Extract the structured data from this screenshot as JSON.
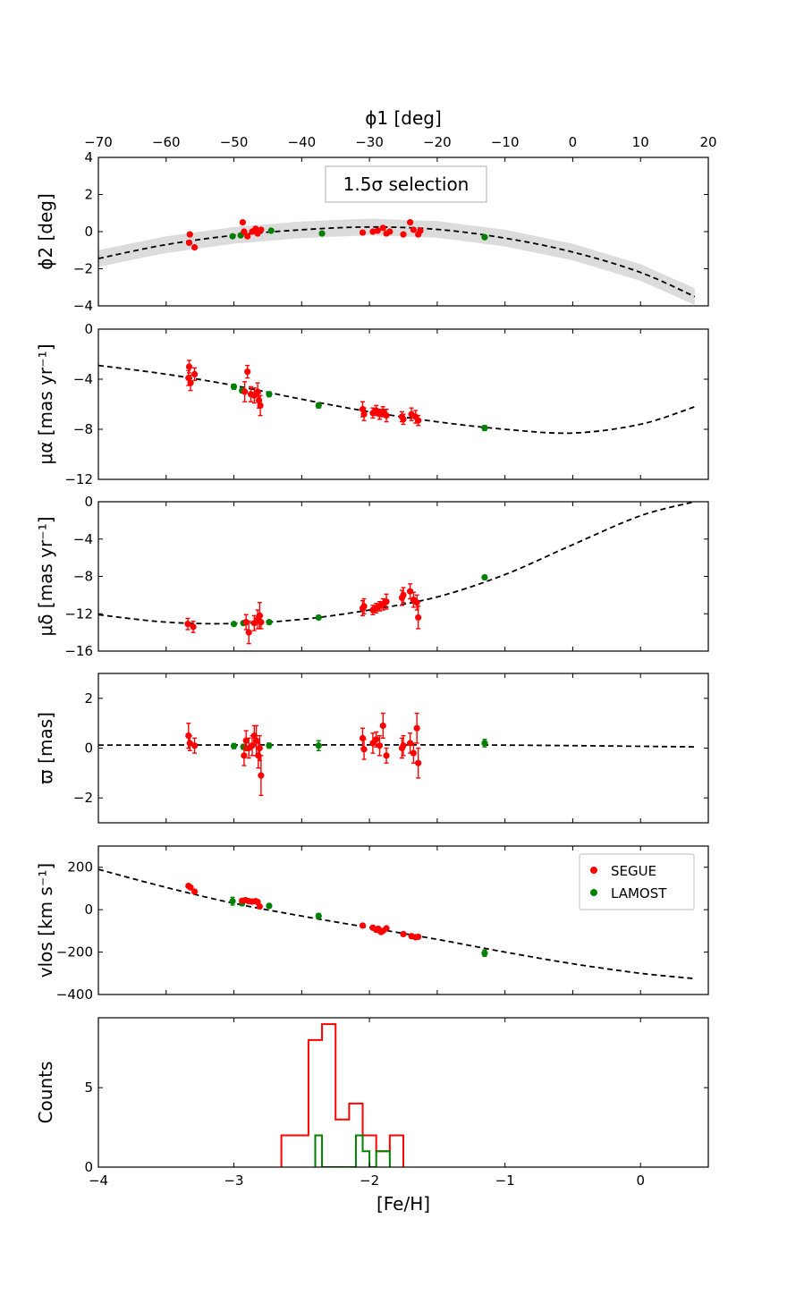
{
  "chart_data": [
    {
      "id": "phi2",
      "type": "scatter",
      "xlabel": "ϕ1 [deg]",
      "ylabel": "ϕ2 [deg]",
      "xlim": [
        -70,
        20
      ],
      "ylim": [
        -4,
        4
      ],
      "xticks": [
        -70,
        -60,
        -50,
        -40,
        -30,
        -20,
        -10,
        0,
        10,
        20
      ],
      "yticks": [
        -4,
        -2,
        0,
        2,
        4
      ],
      "annotation": "1.5σ selection",
      "model": [
        [
          -70,
          -1.45
        ],
        [
          -60,
          -0.7
        ],
        [
          -50,
          -0.2
        ],
        [
          -40,
          0.1
        ],
        [
          -30,
          0.25
        ],
        [
          -20,
          0.12
        ],
        [
          -10,
          -0.35
        ],
        [
          0,
          -1.1
        ],
        [
          10,
          -2.2
        ],
        [
          18,
          -3.5
        ]
      ],
      "band_halfwidth": 0.45,
      "series": [
        {
          "name": "SEGUE",
          "color": "#ff0000",
          "points": [
            [
              -56.5,
              -0.15
            ],
            [
              -56.6,
              -0.6
            ],
            [
              -55.8,
              -0.85
            ],
            [
              -48.7,
              0.5
            ],
            [
              -48.5,
              0.0
            ],
            [
              -48.0,
              -0.25
            ],
            [
              -47.3,
              0.0
            ],
            [
              -46.8,
              0.15
            ],
            [
              -46.5,
              -0.1
            ],
            [
              -46.0,
              0.1
            ],
            [
              -31.0,
              -0.05
            ],
            [
              -29.5,
              0.0
            ],
            [
              -28.8,
              0.05
            ],
            [
              -28.0,
              0.2
            ],
            [
              -27.5,
              -0.1
            ],
            [
              -27.0,
              0.0
            ],
            [
              -25.0,
              -0.15
            ],
            [
              -24.0,
              0.5
            ],
            [
              -23.5,
              0.1
            ],
            [
              -22.8,
              -0.15
            ],
            [
              -22.5,
              0.05
            ]
          ]
        },
        {
          "name": "LAMOST",
          "color": "#008000",
          "points": [
            [
              -50.2,
              -0.25
            ],
            [
              -49.0,
              -0.2
            ],
            [
              -44.5,
              0.05
            ],
            [
              -37.0,
              -0.1
            ],
            [
              -13.0,
              -0.3
            ]
          ]
        }
      ]
    },
    {
      "id": "pmra",
      "type": "scatter",
      "xlabel": "",
      "ylabel": "μα [mas yr⁻¹]",
      "xlim": [
        -70,
        20
      ],
      "ylim": [
        -12,
        0
      ],
      "yticks": [
        -12,
        -8,
        -4,
        0
      ],
      "model": [
        [
          -70,
          -2.9
        ],
        [
          -60,
          -3.6
        ],
        [
          -50,
          -4.5
        ],
        [
          -40,
          -5.6
        ],
        [
          -30,
          -6.6
        ],
        [
          -20,
          -7.4
        ],
        [
          -10,
          -8.0
        ],
        [
          0,
          -8.3
        ],
        [
          10,
          -7.6
        ],
        [
          18,
          -6.2
        ]
      ],
      "series": [
        {
          "name": "SEGUE",
          "color": "#ff0000",
          "points": [
            [
              -56.6,
              -3.0,
              0.5
            ],
            [
              -56.7,
              -3.9,
              0.6
            ],
            [
              -56.4,
              -4.3,
              0.6
            ],
            [
              -55.8,
              -3.6,
              0.5
            ],
            [
              -48.4,
              -5.0,
              0.8
            ],
            [
              -48.0,
              -3.4,
              0.5
            ],
            [
              -47.5,
              -5.2,
              0.6
            ],
            [
              -47.0,
              -5.3,
              0.6
            ],
            [
              -46.5,
              -5.0,
              0.7
            ],
            [
              -46.3,
              -5.7,
              0.6
            ],
            [
              -46.1,
              -6.1,
              0.8
            ],
            [
              -31.0,
              -6.4,
              0.6
            ],
            [
              -30.8,
              -6.8,
              0.5
            ],
            [
              -29.5,
              -6.7,
              0.4
            ],
            [
              -29.0,
              -6.5,
              0.4
            ],
            [
              -28.5,
              -6.8,
              0.4
            ],
            [
              -28.0,
              -6.6,
              0.4
            ],
            [
              -27.5,
              -6.9,
              0.5
            ],
            [
              -25.2,
              -7.0,
              0.4
            ],
            [
              -25.0,
              -7.2,
              0.4
            ],
            [
              -23.8,
              -6.8,
              0.5
            ],
            [
              -23.2,
              -7.0,
              0.5
            ],
            [
              -22.8,
              -7.3,
              0.4
            ]
          ]
        },
        {
          "name": "LAMOST",
          "color": "#008000",
          "points": [
            [
              -50.0,
              -4.6,
              0.2
            ],
            [
              -48.8,
              -4.9,
              0.2
            ],
            [
              -44.8,
              -5.2,
              0.2
            ],
            [
              -37.5,
              -6.1,
              0.2
            ],
            [
              -13.0,
              -7.9,
              0.2
            ]
          ]
        }
      ]
    },
    {
      "id": "pmdec",
      "type": "scatter",
      "xlabel": "",
      "ylabel": "μδ [mas yr⁻¹]",
      "xlim": [
        -70,
        20
      ],
      "ylim": [
        -16,
        0
      ],
      "yticks": [
        -16,
        -12,
        -8,
        -4,
        0
      ],
      "model": [
        [
          -70,
          -12.1
        ],
        [
          -60,
          -12.9
        ],
        [
          -50,
          -13.05
        ],
        [
          -40,
          -12.6
        ],
        [
          -30,
          -11.6
        ],
        [
          -20,
          -10.2
        ],
        [
          -10,
          -7.8
        ],
        [
          0,
          -4.6
        ],
        [
          10,
          -1.5
        ],
        [
          18,
          0.0
        ]
      ],
      "series": [
        {
          "name": "SEGUE",
          "color": "#ff0000",
          "points": [
            [
              -56.8,
              -13.1,
              0.6
            ],
            [
              -56.0,
              -13.4,
              0.6
            ],
            [
              -48.2,
              -12.9,
              0.8
            ],
            [
              -47.8,
              -14.0,
              1.2
            ],
            [
              -47.0,
              -13.0,
              0.8
            ],
            [
              -46.5,
              -12.6,
              1.0
            ],
            [
              -46.2,
              -12.2,
              1.4
            ],
            [
              -46.0,
              -12.9,
              0.7
            ],
            [
              -31.0,
              -11.4,
              0.8
            ],
            [
              -30.8,
              -11.2,
              0.8
            ],
            [
              -29.5,
              -11.6,
              0.5
            ],
            [
              -29.0,
              -11.4,
              0.5
            ],
            [
              -28.5,
              -11.2,
              0.5
            ],
            [
              -28.0,
              -11.0,
              0.6
            ],
            [
              -27.5,
              -10.7,
              0.8
            ],
            [
              -25.2,
              -10.3,
              0.8
            ],
            [
              -25.0,
              -10.0,
              0.8
            ],
            [
              -24.0,
              -9.6,
              0.8
            ],
            [
              -23.5,
              -10.5,
              0.8
            ],
            [
              -23.0,
              -10.8,
              0.8
            ],
            [
              -22.8,
              -12.4,
              1.2
            ]
          ]
        },
        {
          "name": "LAMOST",
          "color": "#008000",
          "points": [
            [
              -50.0,
              -13.1,
              0.2
            ],
            [
              -48.6,
              -13.0,
              0.2
            ],
            [
              -44.8,
              -12.9,
              0.2
            ],
            [
              -37.5,
              -12.4,
              0.2
            ],
            [
              -13.0,
              -8.1,
              0.2
            ]
          ]
        }
      ]
    },
    {
      "id": "parallax",
      "type": "scatter",
      "xlabel": "",
      "ylabel": "ϖ [mas]",
      "xlim": [
        -70,
        20
      ],
      "ylim": [
        -3,
        3
      ],
      "yticks": [
        -2,
        0,
        2
      ],
      "model": [
        [
          -70,
          0.12
        ],
        [
          -40,
          0.13
        ],
        [
          -10,
          0.12
        ],
        [
          18,
          0.05
        ]
      ],
      "series": [
        {
          "name": "SEGUE",
          "color": "#ff0000",
          "points": [
            [
              -56.7,
              0.5,
              0.5
            ],
            [
              -56.5,
              0.2,
              0.3
            ],
            [
              -55.8,
              0.1,
              0.3
            ],
            [
              -48.5,
              -0.3,
              0.4
            ],
            [
              -48.2,
              0.3,
              0.4
            ],
            [
              -47.8,
              0.0,
              0.4
            ],
            [
              -47.3,
              0.1,
              0.4
            ],
            [
              -47.0,
              0.5,
              0.4
            ],
            [
              -46.7,
              0.3,
              0.6
            ],
            [
              -46.4,
              -0.3,
              0.5
            ],
            [
              -46.2,
              0.0,
              0.5
            ],
            [
              -46.0,
              -1.1,
              0.8
            ],
            [
              -31.0,
              0.4,
              0.4
            ],
            [
              -30.8,
              -0.05,
              0.4
            ],
            [
              -29.5,
              0.2,
              0.4
            ],
            [
              -29.0,
              0.35,
              0.3
            ],
            [
              -28.5,
              0.1,
              0.4
            ],
            [
              -28.0,
              0.9,
              0.5
            ],
            [
              -27.5,
              -0.3,
              0.3
            ],
            [
              -25.2,
              0.0,
              0.4
            ],
            [
              -25.0,
              0.1,
              0.4
            ],
            [
              -24.0,
              0.2,
              0.4
            ],
            [
              -23.5,
              -0.2,
              0.4
            ],
            [
              -23.0,
              0.8,
              0.6
            ],
            [
              -22.8,
              -0.6,
              0.6
            ]
          ]
        },
        {
          "name": "LAMOST",
          "color": "#008000",
          "points": [
            [
              -50.0,
              0.08,
              0.1
            ],
            [
              -48.6,
              0.05,
              0.1
            ],
            [
              -44.8,
              0.1,
              0.1
            ],
            [
              -37.5,
              0.1,
              0.2
            ],
            [
              -13.0,
              0.2,
              0.15
            ]
          ]
        }
      ]
    },
    {
      "id": "vlos",
      "type": "scatter",
      "xlabel": "",
      "ylabel": "vlos [km s⁻¹]",
      "xlim": [
        -70,
        20
      ],
      "ylim": [
        -400,
        300
      ],
      "yticks": [
        -400,
        -200,
        0,
        200
      ],
      "model": [
        [
          -70,
          190
        ],
        [
          -60,
          105
        ],
        [
          -50,
          30
        ],
        [
          -40,
          -30
        ],
        [
          -30,
          -85
        ],
        [
          -20,
          -140
        ],
        [
          -10,
          -200
        ],
        [
          0,
          -255
        ],
        [
          10,
          -300
        ],
        [
          18,
          -325
        ]
      ],
      "legend": {
        "position": "upper right",
        "entries": [
          "SEGUE",
          "LAMOST"
        ]
      },
      "series": [
        {
          "name": "SEGUE",
          "color": "#ff0000",
          "points": [
            [
              -56.7,
              112,
              8
            ],
            [
              -56.4,
              105,
              8
            ],
            [
              -55.8,
              85,
              8
            ],
            [
              -48.8,
              42,
              8
            ],
            [
              -48.3,
              45,
              8
            ],
            [
              -47.8,
              40,
              8
            ],
            [
              -47.3,
              38,
              8
            ],
            [
              -46.8,
              40,
              8
            ],
            [
              -46.5,
              36,
              8
            ],
            [
              -46.2,
              15,
              8
            ],
            [
              -31.0,
              -75,
              8
            ],
            [
              -29.5,
              -85,
              8
            ],
            [
              -29.0,
              -95,
              8
            ],
            [
              -28.7,
              -90,
              8
            ],
            [
              -28.3,
              -105,
              8
            ],
            [
              -28.0,
              -100,
              8
            ],
            [
              -27.5,
              -88,
              8
            ],
            [
              -25.0,
              -115,
              8
            ],
            [
              -23.8,
              -125,
              8
            ],
            [
              -23.2,
              -130,
              8
            ],
            [
              -22.8,
              -128,
              8
            ]
          ]
        },
        {
          "name": "LAMOST",
          "color": "#008000",
          "points": [
            [
              -50.2,
              40,
              18
            ],
            [
              -48.8,
              30,
              10
            ],
            [
              -44.8,
              18,
              10
            ],
            [
              -37.5,
              -30,
              12
            ],
            [
              -13.0,
              -205,
              15
            ]
          ]
        }
      ]
    },
    {
      "id": "feh",
      "type": "histogram",
      "xlabel": "[Fe/H]",
      "ylabel": "Counts",
      "xlim": [
        -4,
        0.5
      ],
      "ylim": [
        0,
        9.4
      ],
      "xticks": [
        -4,
        -3,
        -2,
        -1,
        0
      ],
      "yticks": [
        0,
        5
      ],
      "series": [
        {
          "name": "SEGUE",
          "color": "#ff0000",
          "edges": [
            -2.65,
            -2.55,
            -2.45,
            -2.35,
            -2.25,
            -2.15,
            -2.05,
            -1.95,
            -1.85,
            -1.75
          ],
          "counts": [
            2,
            2,
            8,
            9,
            3,
            4,
            2,
            1,
            2
          ]
        },
        {
          "name": "LAMOST",
          "color": "#008000",
          "edges": [
            -2.4,
            -2.35,
            -2.3,
            -2.25,
            -2.2,
            -2.15,
            -2.1,
            -2.05,
            -2.0,
            -1.95,
            -1.9,
            -1.85
          ],
          "counts": [
            2,
            0,
            0,
            0,
            0,
            0,
            2,
            1,
            0,
            1,
            1
          ]
        }
      ]
    }
  ]
}
